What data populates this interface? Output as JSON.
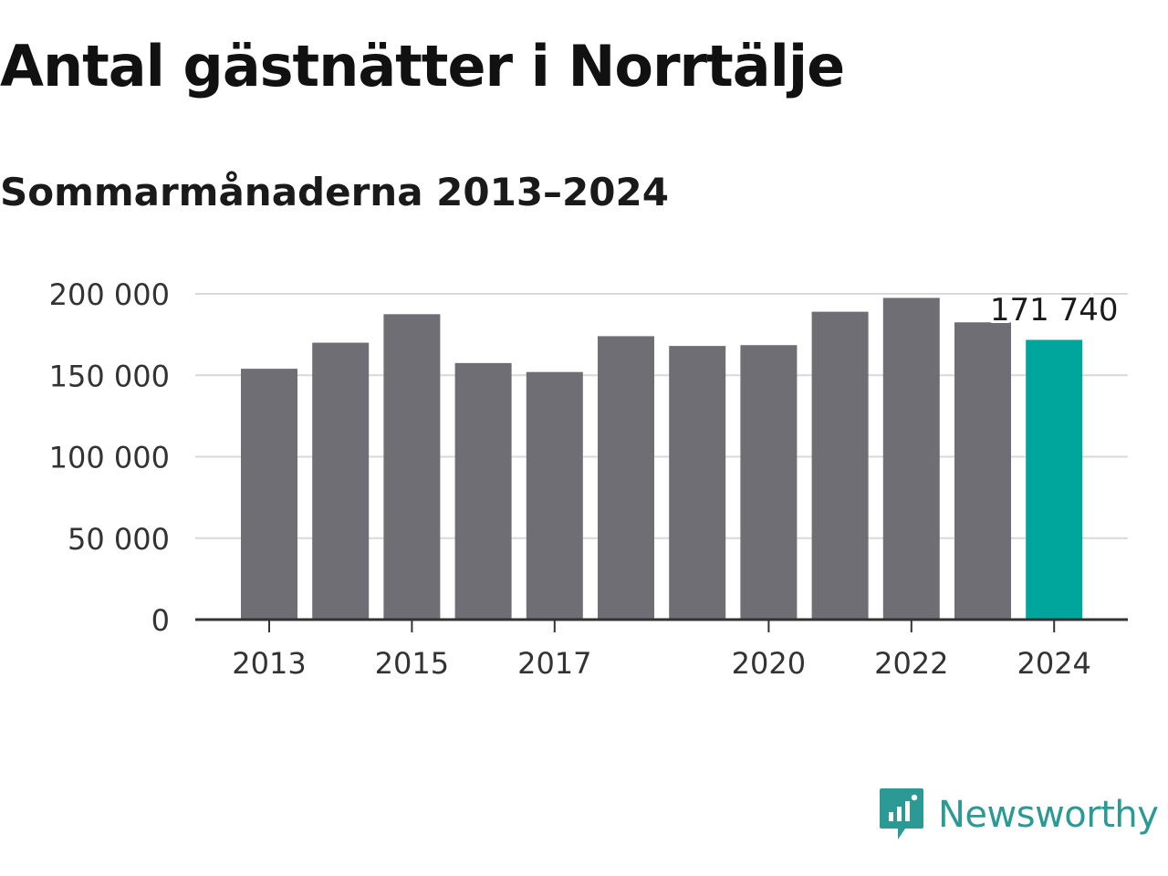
{
  "title": "Antal gästnätter i Norrtälje",
  "subtitle": "Sommarmånaderna 2013–2024",
  "brand": "Newsworthy",
  "colors": {
    "bar": "#6f6e75",
    "highlight": "#00a59b",
    "grid": "#d9d9d9",
    "axis": "#333333",
    "brand": "#2b9a94"
  },
  "chart_data": {
    "type": "bar",
    "title": "Antal gästnätter i Norrtälje",
    "subtitle": "Sommarmånaderna 2013–2024",
    "xlabel": "",
    "ylabel": "",
    "categories": [
      "2013",
      "2014",
      "2015",
      "2016",
      "2017",
      "2018",
      "2019",
      "2020",
      "2021",
      "2022",
      "2023",
      "2024"
    ],
    "x_tick_labels": [
      "2013",
      "2015",
      "2017",
      "2020",
      "2022",
      "2024"
    ],
    "values": [
      154000,
      170000,
      187500,
      157500,
      152000,
      174000,
      168000,
      168500,
      189000,
      197500,
      182500,
      171740
    ],
    "highlight_category": "2024",
    "annotation": {
      "category": "2024",
      "text": "171 740"
    },
    "y_ticks": [
      0,
      50000,
      100000,
      150000,
      200000
    ],
    "y_tick_labels": [
      "0",
      "50 000",
      "100 000",
      "150 000",
      "200 000"
    ],
    "ylim": [
      0,
      200000
    ],
    "grid": true,
    "legend": "none"
  }
}
